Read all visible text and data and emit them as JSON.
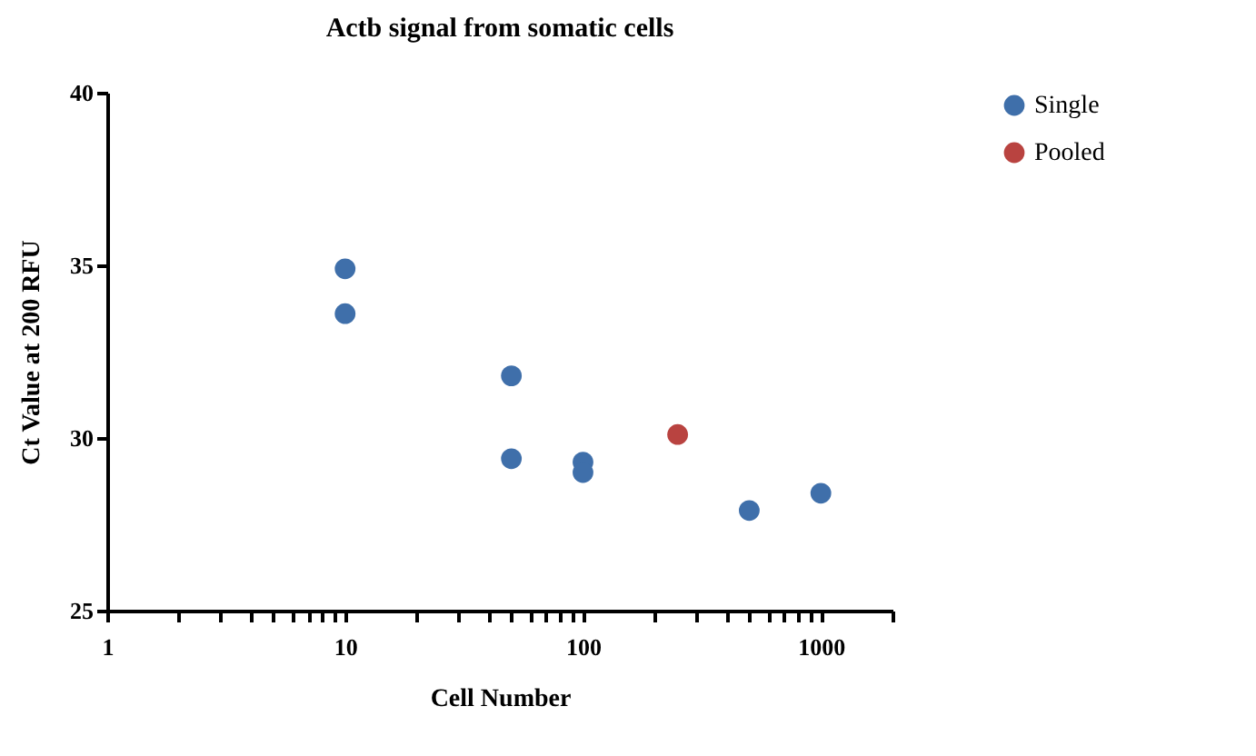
{
  "chart_data": {
    "type": "scatter",
    "title": "Actb signal from somatic cells",
    "xlabel": "Cell Number",
    "ylabel": "Ct Value at 200  RFU",
    "log": "x",
    "xlim": [
      1,
      2000
    ],
    "ylim": [
      25,
      40
    ],
    "yticks": [
      25,
      30,
      35,
      40
    ],
    "xticks": [
      1,
      {
        "value": 2,
        "label": null
      },
      {
        "value": 3,
        "label": null
      },
      {
        "value": 4,
        "label": null
      },
      {
        "value": 5,
        "label": null
      },
      {
        "value": 6,
        "label": null
      },
      {
        "value": 7,
        "label": null
      },
      {
        "value": 8,
        "label": null
      },
      {
        "value": 9,
        "label": null
      },
      10,
      {
        "value": 20,
        "label": null
      },
      {
        "value": 30,
        "label": null
      },
      {
        "value": 40,
        "label": null
      },
      {
        "value": 50,
        "label": null
      },
      {
        "value": 60,
        "label": null
      },
      {
        "value": 70,
        "label": null
      },
      {
        "value": 80,
        "label": null
      },
      {
        "value": 90,
        "label": null
      },
      100,
      {
        "value": 200,
        "label": null
      },
      {
        "value": 300,
        "label": null
      },
      {
        "value": 400,
        "label": null
      },
      {
        "value": 500,
        "label": null
      },
      {
        "value": 600,
        "label": null
      },
      {
        "value": 700,
        "label": null
      },
      {
        "value": 800,
        "label": null
      },
      {
        "value": 900,
        "label": null
      },
      1000,
      {
        "value": 2000,
        "label": null
      }
    ],
    "grid": false,
    "legend": "top right",
    "marker": "circle",
    "series": [
      {
        "name": "Single",
        "color": "#3f6faa",
        "x": [
          10,
          10,
          50,
          50,
          100,
          100,
          500,
          1000
        ],
        "values": [
          34.9,
          33.6,
          31.8,
          29.4,
          29.3,
          29.0,
          27.9,
          28.4
        ]
      },
      {
        "name": "Pooled",
        "color": "#b94340",
        "x": [
          250
        ],
        "values": [
          30.1
        ]
      }
    ]
  }
}
